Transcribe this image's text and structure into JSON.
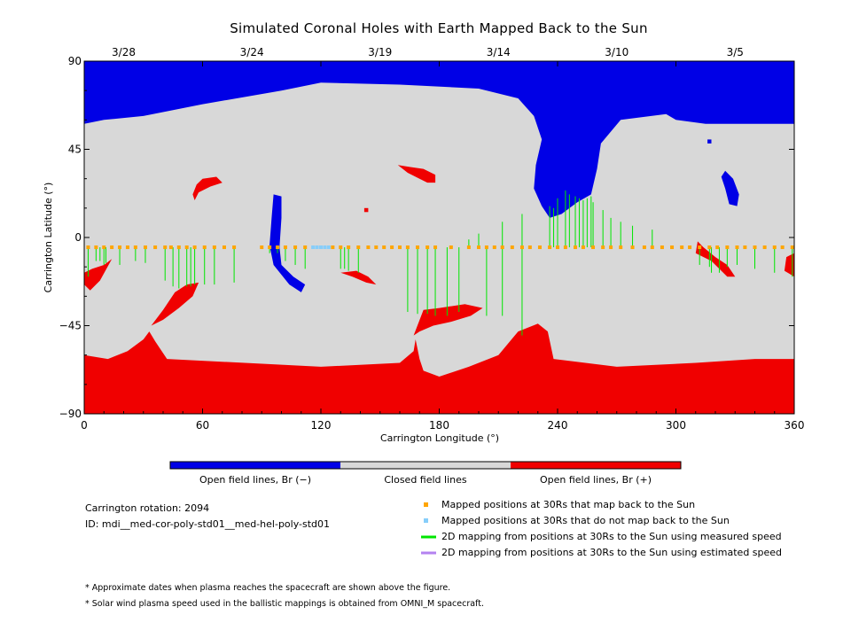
{
  "chart_data": {
    "type": "heatmap",
    "title": "Simulated Coronal Holes with Earth Mapped Back to the Sun",
    "xlabel": "Carrington Longitude (°)",
    "ylabel": "Carrington Latitude (°)",
    "xlim": [
      0,
      360
    ],
    "ylim": [
      -90,
      90
    ],
    "x_ticks": [
      0,
      60,
      120,
      180,
      240,
      300,
      360
    ],
    "y_ticks": [
      -90,
      -45,
      0,
      45,
      90
    ],
    "date_ticks": [
      {
        "lon": 20,
        "label": "3/28"
      },
      {
        "lon": 85,
        "label": "3/24"
      },
      {
        "lon": 150,
        "label": "3/19"
      },
      {
        "lon": 210,
        "label": "3/14"
      },
      {
        "lon": 270,
        "label": "3/10"
      },
      {
        "lon": 330,
        "label": "3/5"
      }
    ],
    "colors": {
      "open_negative": "#0000e6",
      "closed": "#d8d8d8",
      "open_positive": "#f00000",
      "mapped_ok": "#ffa500",
      "mapped_not": "#87cefa",
      "measured": "#00e600",
      "estimated": "#b482f0"
    },
    "colorbar": {
      "segments": [
        {
          "key": "open_negative",
          "label": "Open field lines, Br (−)"
        },
        {
          "key": "closed",
          "label": "Closed field lines"
        },
        {
          "key": "open_positive",
          "label": "Open field lines, Br (+)"
        }
      ]
    },
    "regions": [
      {
        "polarity": "negative",
        "points": [
          [
            0,
            90
          ],
          [
            360,
            90
          ],
          [
            360,
            58
          ],
          [
            315,
            58
          ],
          [
            300,
            60
          ],
          [
            295,
            63
          ],
          [
            272,
            60
          ],
          [
            262,
            48
          ],
          [
            260,
            35
          ],
          [
            257,
            22
          ],
          [
            250,
            18
          ],
          [
            242,
            12
          ],
          [
            236,
            10
          ],
          [
            232,
            16
          ],
          [
            228,
            25
          ],
          [
            229,
            37
          ],
          [
            232,
            50
          ],
          [
            228,
            62
          ],
          [
            220,
            71
          ],
          [
            200,
            76
          ],
          [
            160,
            78
          ],
          [
            120,
            79
          ],
          [
            100,
            75
          ],
          [
            60,
            68
          ],
          [
            30,
            62
          ],
          [
            10,
            60
          ],
          [
            0,
            58
          ]
        ]
      },
      {
        "polarity": "negative",
        "points": [
          [
            96,
            22
          ],
          [
            100,
            21
          ],
          [
            100,
            10
          ],
          [
            99,
            -5
          ],
          [
            100,
            -14
          ],
          [
            106,
            -20
          ],
          [
            112,
            -24
          ],
          [
            110,
            -28
          ],
          [
            104,
            -24
          ],
          [
            96,
            -14
          ],
          [
            94,
            -4
          ],
          [
            95,
            10
          ]
        ]
      },
      {
        "polarity": "negative",
        "points": [
          [
            325,
            34
          ],
          [
            329,
            30
          ],
          [
            332,
            22
          ],
          [
            331,
            16
          ],
          [
            327,
            17
          ],
          [
            325,
            25
          ],
          [
            323,
            31
          ]
        ]
      },
      {
        "polarity": "positive",
        "points": [
          [
            0,
            -60
          ],
          [
            12,
            -62
          ],
          [
            22,
            -58
          ],
          [
            30,
            -52
          ],
          [
            33,
            -48
          ],
          [
            36,
            -53
          ],
          [
            42,
            -62
          ],
          [
            120,
            -66
          ],
          [
            160,
            -64
          ],
          [
            167,
            -58
          ],
          [
            168,
            -52
          ],
          [
            170,
            -62
          ],
          [
            172,
            -68
          ],
          [
            180,
            -71
          ],
          [
            195,
            -66
          ],
          [
            210,
            -60
          ],
          [
            220,
            -48
          ],
          [
            230,
            -44
          ],
          [
            235,
            -48
          ],
          [
            238,
            -62
          ],
          [
            270,
            -66
          ],
          [
            310,
            -64
          ],
          [
            340,
            -62
          ],
          [
            360,
            -62
          ],
          [
            360,
            -90
          ],
          [
            0,
            -90
          ]
        ]
      },
      {
        "polarity": "positive",
        "points": [
          [
            0,
            -18
          ],
          [
            4,
            -16
          ],
          [
            10,
            -14
          ],
          [
            14,
            -11
          ],
          [
            8,
            -22
          ],
          [
            3,
            -27
          ],
          [
            0,
            -24
          ]
        ]
      },
      {
        "polarity": "positive",
        "points": [
          [
            34,
            -45
          ],
          [
            40,
            -37
          ],
          [
            46,
            -28
          ],
          [
            52,
            -24
          ],
          [
            58,
            -23
          ],
          [
            55,
            -30
          ],
          [
            48,
            -36
          ],
          [
            40,
            -42
          ]
        ]
      },
      {
        "polarity": "positive",
        "points": [
          [
            60,
            30
          ],
          [
            67,
            31
          ],
          [
            70,
            28
          ],
          [
            64,
            26
          ],
          [
            58,
            23
          ],
          [
            56,
            19
          ],
          [
            55,
            22
          ],
          [
            57,
            27
          ]
        ]
      },
      {
        "polarity": "positive",
        "points": [
          [
            159,
            37
          ],
          [
            165,
            36
          ],
          [
            172,
            35
          ],
          [
            178,
            32
          ],
          [
            178,
            28
          ],
          [
            174,
            28
          ],
          [
            170,
            30
          ],
          [
            164,
            33
          ]
        ]
      },
      {
        "polarity": "positive",
        "points": [
          [
            167,
            -50
          ],
          [
            172,
            -37
          ],
          [
            180,
            -36
          ],
          [
            193,
            -34
          ],
          [
            202,
            -36
          ],
          [
            196,
            -40
          ],
          [
            186,
            -43
          ],
          [
            177,
            -45
          ],
          [
            170,
            -48
          ]
        ]
      },
      {
        "polarity": "positive",
        "points": [
          [
            130,
            -18
          ],
          [
            136,
            -20
          ],
          [
            143,
            -23
          ],
          [
            148,
            -24
          ],
          [
            144,
            -20
          ],
          [
            138,
            -17
          ]
        ]
      },
      {
        "polarity": "positive",
        "points": [
          [
            310,
            -8
          ],
          [
            318,
            -12
          ],
          [
            323,
            -17
          ],
          [
            326,
            -20
          ],
          [
            330,
            -20
          ],
          [
            326,
            -14
          ],
          [
            320,
            -10
          ],
          [
            314,
            -5
          ],
          [
            311,
            -2
          ]
        ]
      },
      {
        "polarity": "positive",
        "points": [
          [
            356,
            -10
          ],
          [
            360,
            -8
          ],
          [
            360,
            -20
          ],
          [
            355,
            -17
          ]
        ]
      },
      {
        "polarity": "positive",
        "points": [
          [
            142,
            15
          ],
          [
            144,
            15
          ],
          [
            144,
            13
          ],
          [
            142,
            13
          ]
        ]
      },
      {
        "polarity": "negative",
        "points": [
          [
            316,
            50
          ],
          [
            318,
            50
          ],
          [
            318,
            48
          ],
          [
            316,
            48
          ]
        ]
      }
    ],
    "mapped_points": {
      "ok": [
        2,
        6,
        10,
        14,
        18,
        22,
        26,
        31,
        36,
        41,
        44,
        48,
        52,
        56,
        61,
        66,
        71,
        76,
        90,
        94,
        98,
        102,
        107,
        112,
        126,
        130,
        134,
        139,
        144,
        148,
        152,
        156,
        160,
        164,
        169,
        174,
        178,
        186,
        195,
        200,
        204,
        208,
        212,
        217,
        222,
        226,
        231,
        236,
        240,
        244,
        249,
        253,
        258,
        263,
        267,
        272,
        278,
        284,
        288,
        293,
        298,
        303,
        307,
        312,
        317,
        321,
        326,
        331,
        335,
        340,
        345,
        350,
        354,
        359
      ],
      "not": [
        116,
        118,
        120,
        122,
        124
      ]
    },
    "mapping_lines_measured": [
      [
        2,
        -20
      ],
      [
        6,
        -12
      ],
      [
        8,
        -12
      ],
      [
        10,
        -14
      ],
      [
        11,
        -13
      ],
      [
        18,
        -14
      ],
      [
        26,
        -12
      ],
      [
        31,
        -13
      ],
      [
        41,
        -22
      ],
      [
        45,
        -25
      ],
      [
        48,
        -26
      ],
      [
        52,
        -25
      ],
      [
        54,
        -25
      ],
      [
        56,
        -24
      ],
      [
        61,
        -24
      ],
      [
        66,
        -24
      ],
      [
        76,
        -23
      ],
      [
        94,
        -8
      ],
      [
        98,
        -8
      ],
      [
        102,
        -12
      ],
      [
        107,
        -14
      ],
      [
        112,
        -16
      ],
      [
        130,
        -16
      ],
      [
        132,
        -16
      ],
      [
        134,
        -17
      ],
      [
        139,
        -18
      ],
      [
        164,
        -38
      ],
      [
        169,
        -39
      ],
      [
        174,
        -39
      ],
      [
        178,
        -40
      ],
      [
        184,
        -40
      ],
      [
        190,
        -38
      ],
      [
        204,
        -40
      ],
      [
        212,
        -40
      ],
      [
        222,
        -50
      ],
      [
        195,
        -1
      ],
      [
        200,
        2
      ],
      [
        212,
        8
      ],
      [
        222,
        12
      ],
      [
        236,
        16
      ],
      [
        238,
        15
      ],
      [
        240,
        20
      ],
      [
        244,
        24
      ],
      [
        246,
        22
      ],
      [
        249,
        21
      ],
      [
        251,
        20
      ],
      [
        253,
        19
      ],
      [
        255,
        20
      ],
      [
        257,
        21
      ],
      [
        258,
        18
      ],
      [
        263,
        14
      ],
      [
        267,
        10
      ],
      [
        272,
        8
      ],
      [
        278,
        6
      ],
      [
        288,
        4
      ],
      [
        312,
        -14
      ],
      [
        317,
        -15
      ],
      [
        318,
        -18
      ],
      [
        322,
        -18
      ],
      [
        326,
        -15
      ],
      [
        331,
        -14
      ],
      [
        340,
        -16
      ],
      [
        350,
        -18
      ],
      [
        359,
        -20
      ]
    ],
    "mapping_lines_estimated": []
  },
  "legend": {
    "carrington_rotation": "Carrington rotation: 2094",
    "id": "ID: mdi__med-cor-poly-std01__med-hel-poly-std01",
    "items": [
      {
        "marker": "square",
        "color_key": "mapped_ok",
        "label": "Mapped positions at 30Rs that map back to the Sun"
      },
      {
        "marker": "square",
        "color_key": "mapped_not",
        "label": "Mapped positions at 30Rs that do not map back to the Sun"
      },
      {
        "marker": "line",
        "color_key": "measured",
        "label": "2D mapping from positions at 30Rs to the Sun using measured speed"
      },
      {
        "marker": "line",
        "color_key": "estimated",
        "label": "2D mapping from positions at 30Rs to the Sun using estimated speed"
      }
    ]
  },
  "footnotes": [
    "* Approximate dates when plasma reaches the spacecraft are shown above the figure.",
    "* Solar wind plasma speed used in the ballistic mappings is obtained from OMNI_M spacecraft."
  ]
}
